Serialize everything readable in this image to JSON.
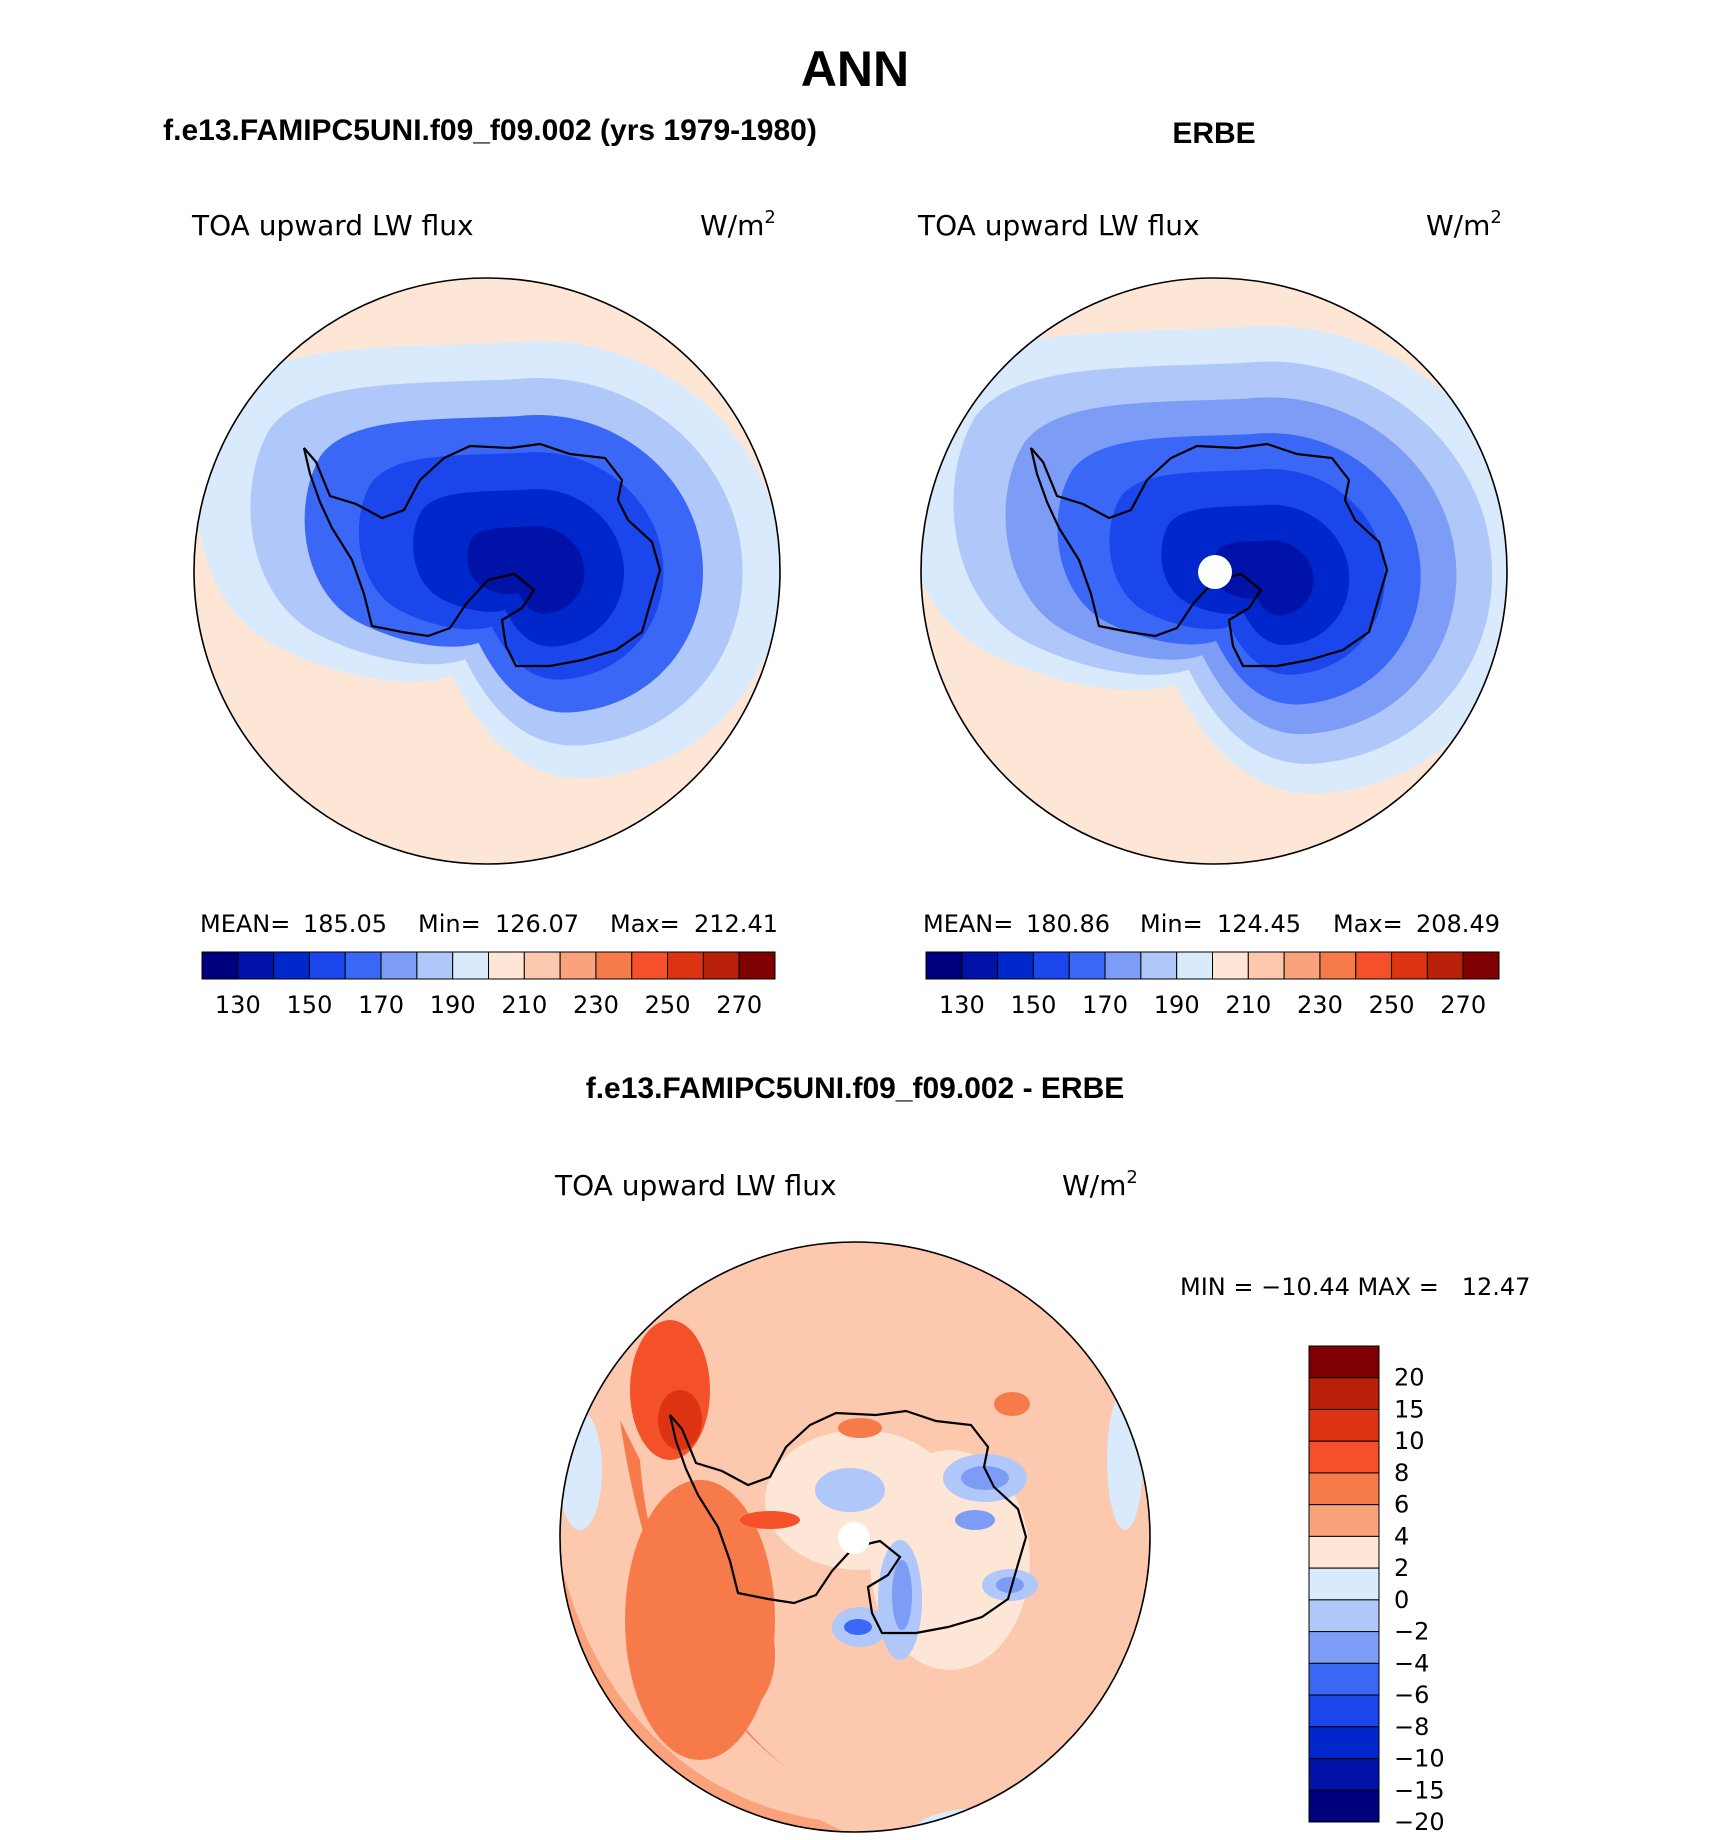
{
  "title": "ANN",
  "panels": [
    {
      "id": "model",
      "heading": "f.e13.FAMIPC5UNI.f09_f09.002 (yrs 1979-1980)",
      "variable": "TOA upward LW flux",
      "units": "W/m",
      "units_sup": "2",
      "stats": {
        "mean_label": "MEAN=",
        "mean": "185.05",
        "min_label": "Min=",
        "min": "126.07",
        "max_label": "Max=",
        "max": "212.41"
      },
      "field_levels": [
        192,
        180,
        168,
        158,
        148,
        138
      ]
    },
    {
      "id": "obs",
      "heading": "ERBE",
      "variable": "TOA upward LW flux",
      "units": "W/m",
      "units_sup": "2",
      "stats": {
        "mean_label": "MEAN=",
        "mean": "180.86",
        "min_label": "Min=",
        "min": "124.45",
        "max_label": "Max=",
        "max": "208.49"
      },
      "field_levels": [
        192,
        182,
        172,
        162,
        152,
        142,
        132
      ]
    },
    {
      "id": "diff",
      "heading": "f.e13.FAMIPC5UNI.f09_f09.002 - ERBE",
      "variable": "TOA upward LW flux",
      "units": "W/m",
      "units_sup": "2",
      "stats_text": "MIN = −10.44 MAX =   12.47"
    }
  ],
  "colorbar_abs": {
    "colors": [
      "#00007f",
      "#0012a8",
      "#0027cc",
      "#1a46ec",
      "#3a67f5",
      "#7c9cf5",
      "#b0c7fa",
      "#d9eafc",
      "#fde6d6",
      "#fcc8ae",
      "#f9a27c",
      "#f77a4b",
      "#f4512a",
      "#de3313",
      "#b8200a",
      "#7f0000"
    ],
    "labels": [
      "130",
      "150",
      "170",
      "190",
      "210",
      "230",
      "250",
      "270"
    ]
  },
  "colorbar_diff": {
    "colors": [
      "#7f0000",
      "#b8200a",
      "#de3313",
      "#f4512a",
      "#f77a4b",
      "#f9a27c",
      "#fde6d6",
      "#d9eafc",
      "#b0c7fa",
      "#7c9cf5",
      "#3a67f5",
      "#1a46ec",
      "#0027cc",
      "#0012a8",
      "#00007f"
    ],
    "labels": [
      "20",
      "15",
      "10",
      "8",
      "6",
      "4",
      "2",
      "0",
      "−2",
      "−4",
      "−6",
      "−8",
      "−10",
      "−15",
      "−20"
    ]
  }
}
